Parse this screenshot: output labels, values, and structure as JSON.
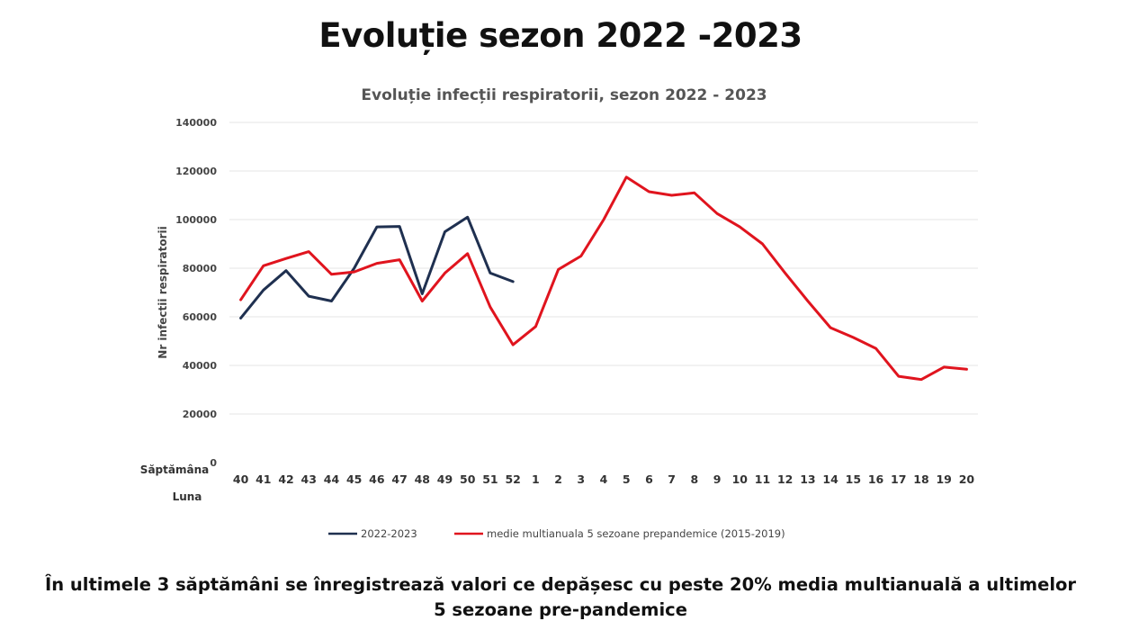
{
  "page": {
    "title": "Evoluție sezon 2022 -2023",
    "footer": "În ultimele 3 săptămâni se înregistrează valori ce depășesc cu peste 20% media multianuală a ultimelor 5 sezoane pre-pandemice"
  },
  "chart_data": {
    "type": "line",
    "title": "Evoluție infecții respiratorii, sezon 2022 - 2023",
    "ylabel": "Nr infectii respiratorii",
    "xlabel": "",
    "x_row_label": "Săptămâna",
    "x_row2_label": "Luna",
    "ylim": [
      0,
      140000
    ],
    "yticks": [
      "0",
      "20000",
      "40000",
      "60000",
      "80000",
      "100000",
      "120000",
      "140000"
    ],
    "yticks_values": [
      0,
      20000,
      40000,
      60000,
      80000,
      100000,
      120000,
      140000
    ],
    "grid": true,
    "legend_position": "bottom",
    "categories": [
      "40",
      "41",
      "42",
      "43",
      "44",
      "45",
      "46",
      "47",
      "48",
      "49",
      "50",
      "51",
      "52",
      "1",
      "2",
      "3",
      "4",
      "5",
      "6",
      "7",
      "8",
      "9",
      "10",
      "11",
      "12",
      "13",
      "14",
      "15",
      "16",
      "17",
      "18",
      "19",
      "20"
    ],
    "series": [
      {
        "name": "2022-2023",
        "color": "#1f3050",
        "values": [
          59500,
          71000,
          79000,
          68500,
          66500,
          80000,
          97000,
          97200,
          69500,
          95000,
          101000,
          78000,
          74500,
          null,
          null,
          null,
          null,
          null,
          null,
          null,
          null,
          null,
          null,
          null,
          null,
          null,
          null,
          null,
          null,
          null,
          null,
          null,
          null
        ]
      },
      {
        "name": "medie multianuala 5 sezoane prepandemice (2015-2019)",
        "color": "#e0141e",
        "values": [
          67000,
          81000,
          84000,
          86800,
          77500,
          78500,
          82000,
          83500,
          66500,
          78000,
          86000,
          64000,
          48500,
          56000,
          79500,
          85000,
          100000,
          117500,
          111500,
          110000,
          111000,
          102500,
          97000,
          90000,
          78000,
          66500,
          55500,
          51500,
          47000,
          35500,
          34200,
          39300,
          38400
        ]
      }
    ]
  }
}
